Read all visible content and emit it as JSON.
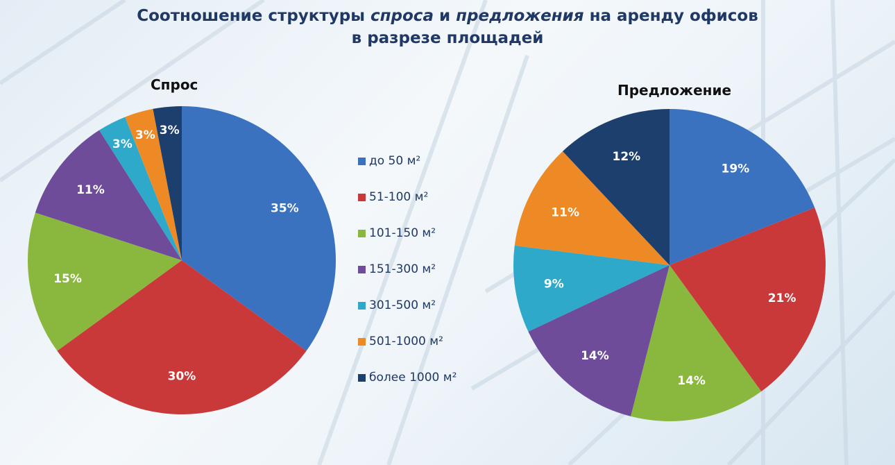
{
  "title": {
    "part1": "Соотношение структуры ",
    "demand_word": "спроса",
    "and": " и ",
    "supply_word": "предложения",
    "part2": " на аренду офисов",
    "line2": "в разрезе площадей"
  },
  "chart_data": [
    {
      "type": "pie",
      "title": "Спрос",
      "categories": [
        "до 50 м²",
        "51-100 м²",
        "101-150 м²",
        "151-300 м²",
        "301-500 м²",
        "501-1000 м²",
        "более 1000 м²"
      ],
      "values": [
        35,
        30,
        15,
        11,
        3,
        3,
        3
      ],
      "unit": "%"
    },
    {
      "type": "pie",
      "title": "Предложение",
      "categories": [
        "до 50 м²",
        "51-100 м²",
        "101-150 м²",
        "151-300 м²",
        "301-500 м²",
        "501-1000 м²",
        "более 1000 м²"
      ],
      "values": [
        19,
        21,
        14,
        14,
        9,
        11,
        12
      ],
      "unit": "%"
    }
  ],
  "legend": [
    "до 50 м²",
    "51-100 м²",
    "101-150 м²",
    "151-300 м²",
    "301-500 м²",
    "501-1000 м²",
    "более 1000 м²"
  ],
  "colors": [
    "#3a72c0",
    "#c9393a",
    "#8ab83e",
    "#6e4c9a",
    "#2fa9c9",
    "#ee8a26",
    "#1d3f6e"
  ]
}
